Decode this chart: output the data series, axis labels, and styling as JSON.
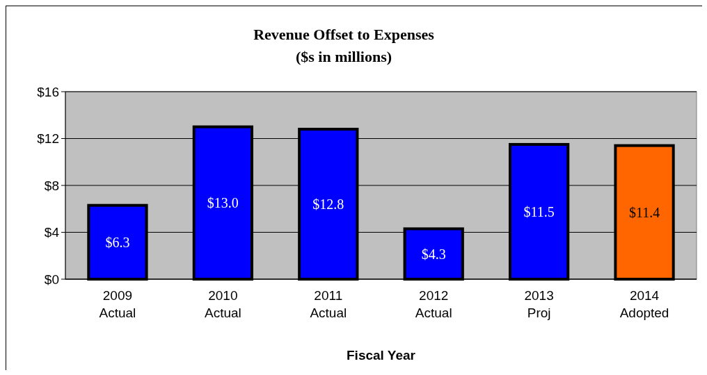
{
  "chart_data": {
    "type": "bar",
    "title": "Revenue Offset to Expenses",
    "subtitle": "($s in millions)",
    "xlabel": "Fiscal Year",
    "categories": [
      "2009\nActual",
      "2010\nActual",
      "2011\nActual",
      "2012\nActual",
      "2013\nProj",
      "2014\nAdopted"
    ],
    "values": [
      6.3,
      13.0,
      12.8,
      4.3,
      11.5,
      11.4
    ],
    "colors": [
      "#0000ff",
      "#0000ff",
      "#0000ff",
      "#0000ff",
      "#0000ff",
      "#ff6600"
    ],
    "value_labels": [
      "$6.3",
      "$13.0",
      "$12.8",
      "$4.3",
      "$11.5",
      "$11.4"
    ],
    "ylim": [
      0,
      16
    ],
    "yticks": [
      {
        "value": 0,
        "label": "$0"
      },
      {
        "value": 4,
        "label": "$4"
      },
      {
        "value": 8,
        "label": "$8"
      },
      {
        "value": 12,
        "label": "$12"
      },
      {
        "value": 16,
        "label": "$16"
      }
    ],
    "grid": "y"
  }
}
